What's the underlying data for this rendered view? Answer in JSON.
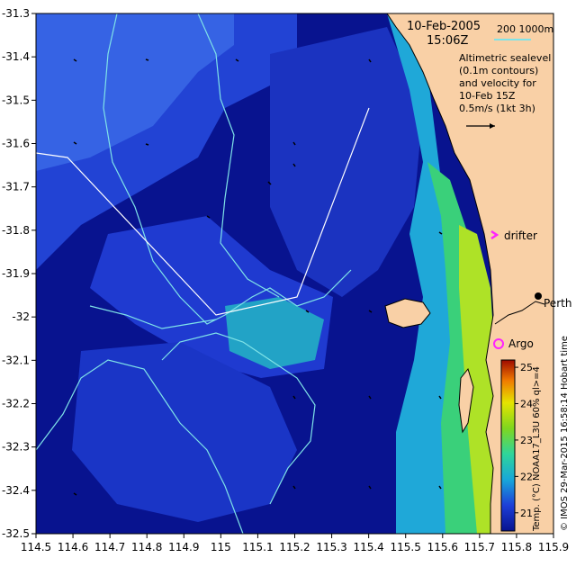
{
  "map": {
    "date_label": "10-Feb-2005",
    "time_label": "15:06Z",
    "scale_label": "200  1000m",
    "legend_text": [
      "Altimetric sealevel",
      "(0.1m contours)",
      "and velocity for",
      "10-Feb 15Z",
      "0.5m/s (1kt 3h)"
    ],
    "drifter_label": "drifter",
    "argo_label": "Argo",
    "city_label": "Perth",
    "credit": "© IMOS 29-Mar-2015 16:58:14 Hobart time",
    "colorbar_title": "Temp. (°C) NOAA17_L3U 60% ql>=4",
    "colorbar_ticks": [
      "21",
      "22",
      "23",
      "24",
      "25"
    ],
    "colorbar_range": [
      20.5,
      25.2
    ],
    "colors": {
      "ocean_dark": "#08138f",
      "ocean_mid": "#1430c4",
      "land": "#f9d0a6",
      "contour": "#7fe3e8",
      "track": "#ffffff",
      "drifter_marker": "#ff22ff",
      "argo_marker": "#ff22ff"
    },
    "x_ticks": [
      "114.5",
      "114.6",
      "114.7",
      "114.8",
      "114.9",
      "115",
      "115.1",
      "115.2",
      "115.3",
      "115.4",
      "115.5",
      "115.6",
      "115.7",
      "115.8",
      "115.9"
    ],
    "y_ticks": [
      "-31.3",
      "-31.4",
      "-31.5",
      "-31.6",
      "-31.7",
      "-31.8",
      "-31.9",
      "-32",
      "-32.1",
      "-32.2",
      "-32.3",
      "-32.4",
      "-32.5"
    ],
    "lon_range": [
      114.5,
      115.9
    ],
    "lat_range": [
      -32.5,
      -31.3
    ]
  }
}
